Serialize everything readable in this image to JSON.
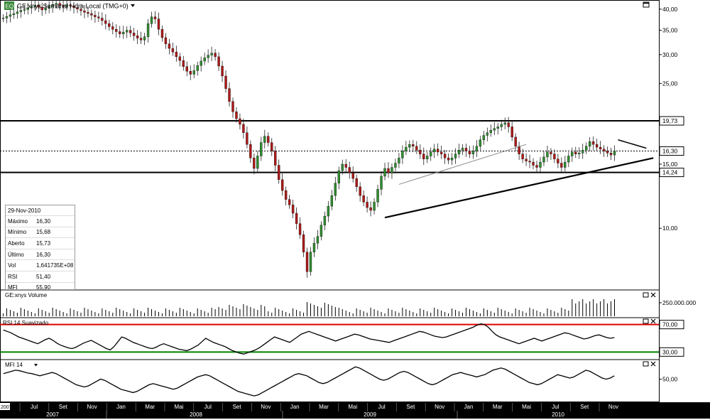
{
  "header": {
    "logo_text": "EQ",
    "title": "GE:xnys Semanal Hora Local (TMG+0)"
  },
  "info_box": {
    "date": "29-Nov-2010",
    "rows": [
      {
        "label": "Máximo",
        "value": "16,30"
      },
      {
        "label": "Mínimo",
        "value": "15,68"
      },
      {
        "label": "Aberto",
        "value": "15,73"
      },
      {
        "label": "Último",
        "value": "16,30"
      },
      {
        "label": "Vol",
        "value": "1,641735E+08"
      },
      {
        "label": "RSI",
        "value": "51,40"
      },
      {
        "label": "MFI",
        "value": "55,90"
      }
    ]
  },
  "panels": {
    "volume_title": "GE:xnys Volume",
    "rsi_title": "RSI 14 Suavizado",
    "mfi_title": "MFI 14"
  },
  "colors": {
    "up": "#2f8f2f",
    "down": "#b01818",
    "rsi_upper_line": "#e00000",
    "rsi_lower_line": "#008000",
    "axis_bg": "#000000"
  },
  "chart_data": {
    "type": "candlestick",
    "price_axis_ticks": [
      "40,00",
      "35,00",
      "30,00",
      "25,00",
      "19,73",
      "16,30",
      "15,00",
      "14,24",
      "10,00"
    ],
    "price_tick_values": [
      40,
      35,
      30,
      25,
      19.73,
      16.3,
      15,
      14.24,
      10
    ],
    "price_ylim": [
      6.8,
      42
    ],
    "horizontal_lines": [
      19.73,
      14.24
    ],
    "last_price": 16.3,
    "volume_axis_ticks": [
      "250.000.000"
    ],
    "rsi_axis_ticks": [
      "70,00",
      "30,00"
    ],
    "rsi_levels": [
      70,
      30
    ],
    "mfi_axis_ticks": [
      "50,00"
    ],
    "x_month_labels": [
      "Jul",
      "Set",
      "Nov",
      "Jan",
      "Mar",
      "Mai",
      "Jul",
      "Set",
      "Nov",
      "Jan",
      "Mar",
      "Mai",
      "Jul",
      "Set",
      "Nov",
      "Jan",
      "Mar",
      "Mai",
      "Jul",
      "Set",
      "Nov"
    ],
    "x_year_labels": [
      "2007",
      "2008",
      "2009",
      "2010"
    ],
    "x_start_label": "2007",
    "weekly_close": [
      37.8,
      38.2,
      38.6,
      38.9,
      39.3,
      39.7,
      39.9,
      40.3,
      40.6,
      41.0,
      40.5,
      39.8,
      40.2,
      40.6,
      41.2,
      41.5,
      41.0,
      40.7,
      41.1,
      40.8,
      40.4,
      40.0,
      39.6,
      39.2,
      38.9,
      38.5,
      38.1,
      37.8,
      37.2,
      36.5,
      35.8,
      35.2,
      34.7,
      34.2,
      34.6,
      35.0,
      34.4,
      33.8,
      33.3,
      32.9,
      33.6,
      36.5,
      38.1,
      37.6,
      35.2,
      33.4,
      32.1,
      31.2,
      30.5,
      29.6,
      28.9,
      27.8,
      27.0,
      26.5,
      27.1,
      28.0,
      28.8,
      29.4,
      29.9,
      30.3,
      29.6,
      27.9,
      26.2,
      24.2,
      22.3,
      20.9,
      20.0,
      19.3,
      18.3,
      17.0,
      15.6,
      14.6,
      15.8,
      17.2,
      17.9,
      17.2,
      16.3,
      14.9,
      13.6,
      12.7,
      12.0,
      11.6,
      11.0,
      10.3,
      9.6,
      8.6,
      7.6,
      8.6,
      9.1,
      9.5,
      10.2,
      10.8,
      11.5,
      12.3,
      13.3,
      14.4,
      15.0,
      14.7,
      14.2,
      13.7,
      13.0,
      12.3,
      11.8,
      11.4,
      11.2,
      11.8,
      12.8,
      13.9,
      14.6,
      14.2,
      14.7,
      15.1,
      15.6,
      16.3,
      16.7,
      17.0,
      16.8,
      16.4,
      16.0,
      15.5,
      15.8,
      16.2,
      16.5,
      16.2,
      16.0,
      15.6,
      15.4,
      15.6,
      16.0,
      16.4,
      16.6,
      16.3,
      16.0,
      16.3,
      16.8,
      17.5,
      18.0,
      18.3,
      18.6,
      18.8,
      19.0,
      19.3,
      19.5,
      19.0,
      17.8,
      16.8,
      16.0,
      15.5,
      15.3,
      15.2,
      14.9,
      14.7,
      15.2,
      15.7,
      16.2,
      16.0,
      15.5,
      15.1,
      14.7,
      15.2,
      15.8,
      16.2,
      16.0,
      16.1,
      16.4,
      16.8,
      17.3,
      17.0,
      16.7,
      16.5,
      16.3,
      16.1,
      15.9,
      16.3
    ],
    "rsi_series": [
      62,
      60,
      58,
      55,
      52,
      50,
      48,
      46,
      44,
      42,
      45,
      48,
      50,
      47,
      43,
      40,
      38,
      36,
      35,
      37,
      40,
      43,
      45,
      47,
      44,
      41,
      38,
      35,
      33,
      38,
      45,
      52,
      50,
      47,
      44,
      42,
      40,
      38,
      36,
      35,
      37,
      40,
      42,
      40,
      38,
      36,
      34,
      33,
      32,
      34,
      37,
      40,
      45,
      50,
      47,
      44,
      42,
      40,
      38,
      35,
      32,
      30,
      28,
      27,
      29,
      31,
      33,
      36,
      40,
      44,
      48,
      52,
      50,
      48,
      46,
      44,
      48,
      52,
      56,
      58,
      60,
      58,
      56,
      54,
      52,
      50,
      48,
      46,
      48,
      50,
      52,
      54,
      56,
      55,
      53,
      51,
      49,
      48,
      47,
      46,
      45,
      44,
      46,
      48,
      50,
      52,
      54,
      56,
      58,
      60,
      59,
      57,
      55,
      53,
      52,
      51,
      52,
      54,
      56,
      58,
      60,
      62,
      64,
      66,
      69,
      71,
      70,
      66,
      60,
      55,
      52,
      50,
      48,
      46,
      44,
      42,
      44,
      46,
      48,
      50,
      48,
      46,
      48,
      50,
      52,
      54,
      56,
      58,
      57,
      55,
      53,
      51,
      49,
      50,
      52,
      54,
      55,
      53,
      51,
      50,
      51
    ],
    "mfi_series": [
      60,
      62,
      64,
      66,
      65,
      63,
      61,
      60,
      58,
      56,
      58,
      60,
      62,
      60,
      56,
      52,
      48,
      44,
      40,
      38,
      36,
      38,
      42,
      46,
      50,
      48,
      44,
      40,
      36,
      32,
      30,
      28,
      26,
      28,
      32,
      36,
      40,
      42,
      40,
      38,
      36,
      34,
      32,
      34,
      38,
      42,
      46,
      50,
      54,
      56,
      58,
      56,
      52,
      48,
      44,
      40,
      36,
      32,
      28,
      26,
      24,
      22,
      20,
      22,
      26,
      30,
      34,
      38,
      42,
      46,
      50,
      54,
      58,
      60,
      58,
      56,
      52,
      48,
      44,
      42,
      44,
      48,
      52,
      56,
      60,
      64,
      68,
      72,
      70,
      66,
      62,
      58,
      54,
      50,
      48,
      50,
      54,
      58,
      62,
      64,
      62,
      58,
      54,
      50,
      46,
      42,
      40,
      42,
      46,
      50,
      54,
      58,
      60,
      62,
      60,
      58,
      56,
      54,
      56,
      58,
      62,
      66,
      68,
      70,
      68,
      64,
      60,
      56,
      52,
      48,
      44,
      42,
      40,
      42,
      46,
      50,
      54,
      58,
      56,
      54,
      52,
      54,
      58,
      62,
      66,
      64,
      60,
      56,
      52,
      50,
      52,
      56
    ]
  }
}
